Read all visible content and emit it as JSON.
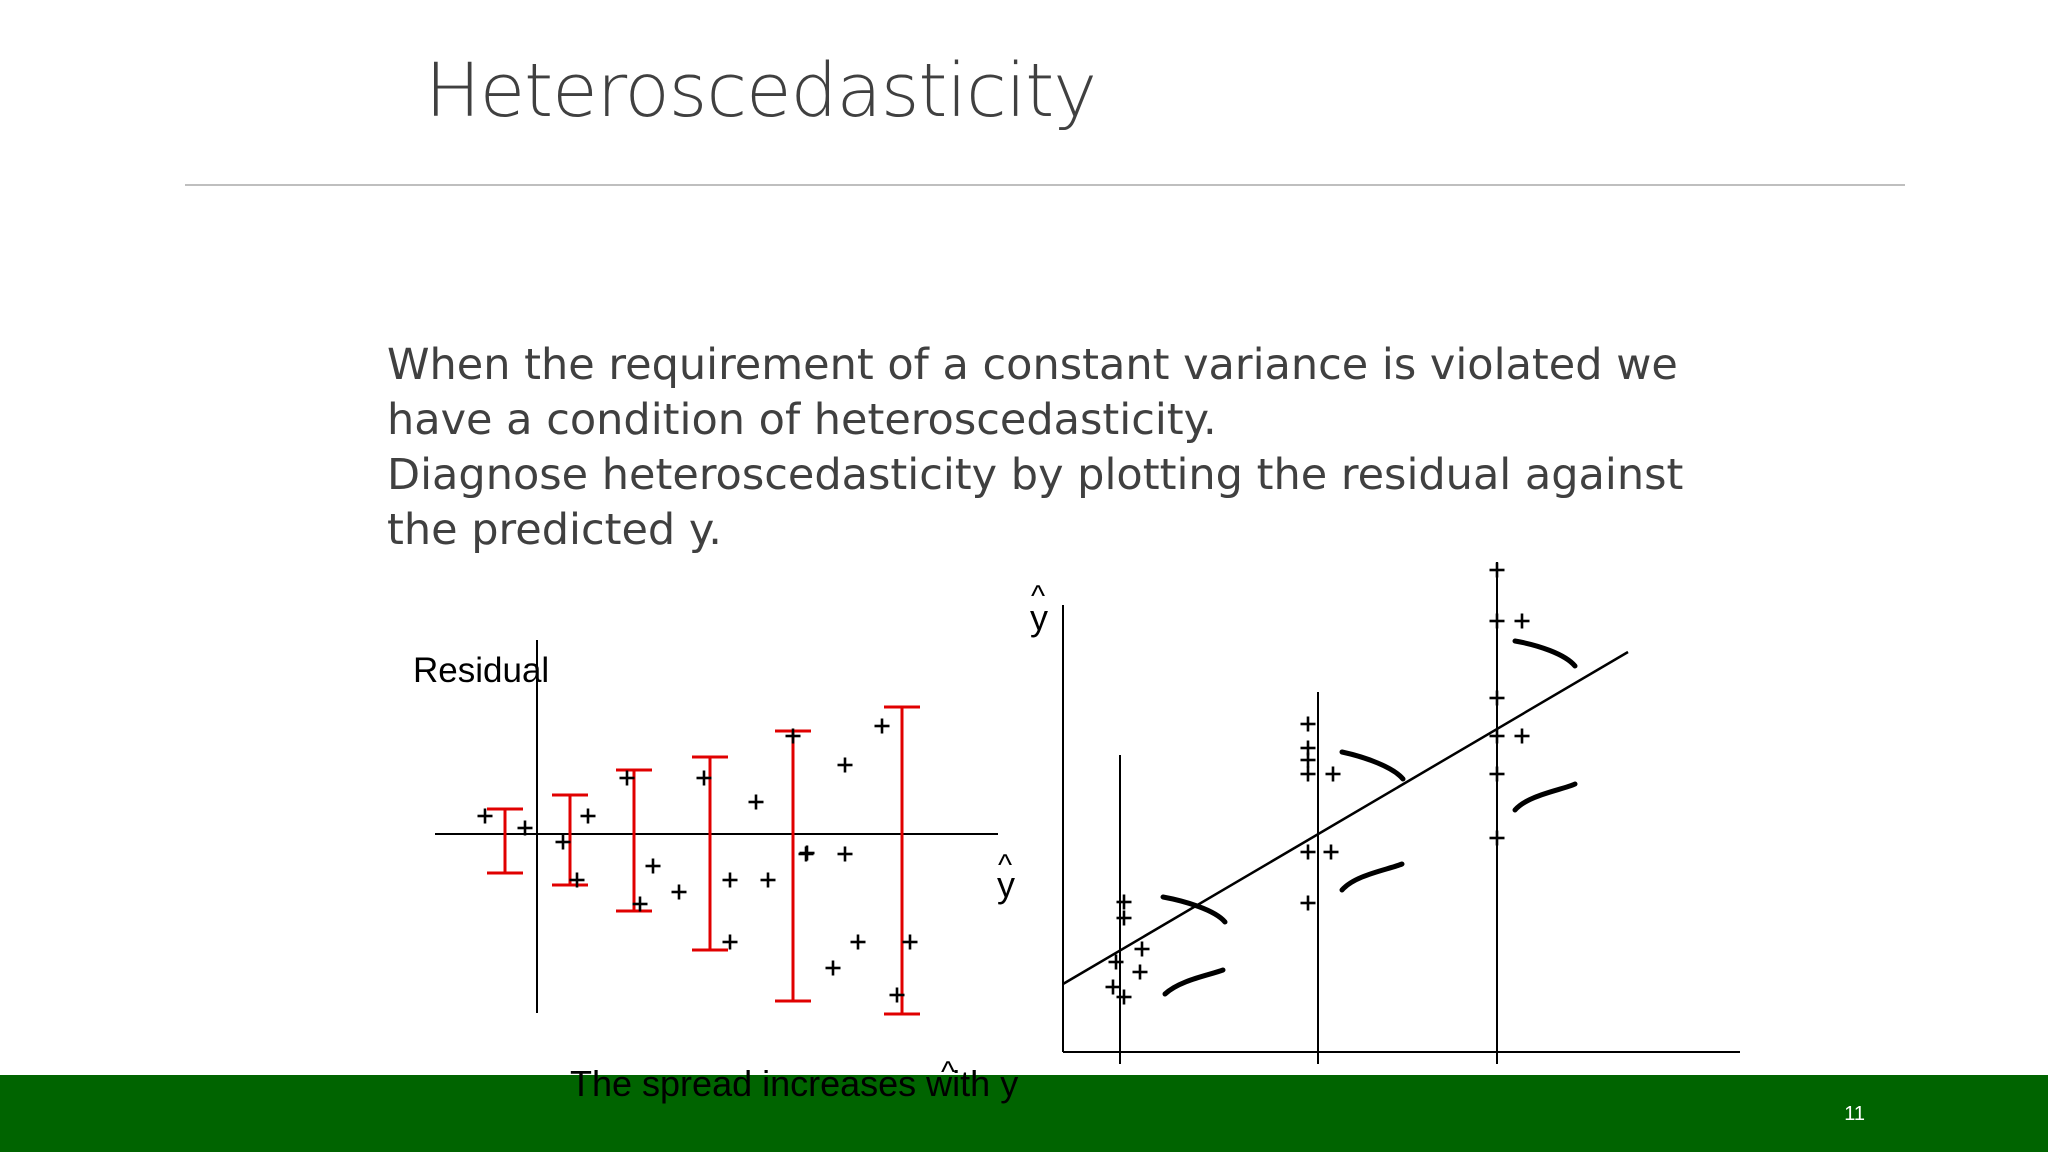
{
  "slide": {
    "title": "Heteroscedasticity",
    "paragraph1": "When the requirement of a constant variance is violated we have a condition of heteroscedasticity.",
    "paragraph2": "Diagnose heteroscedasticity by plotting the residual against the predicted y.",
    "page_number": "11",
    "caption": "The spread increases with y",
    "colors": {
      "footer": "#006400",
      "error_bars": "#e00000",
      "text": "#404040"
    }
  },
  "left_plot": {
    "ylabel": "Residual",
    "xlabel": "y",
    "xlabel_hat": "^"
  },
  "right_plot": {
    "ylabel": "y",
    "ylabel_hat": "^"
  },
  "caption_hat": "^"
}
